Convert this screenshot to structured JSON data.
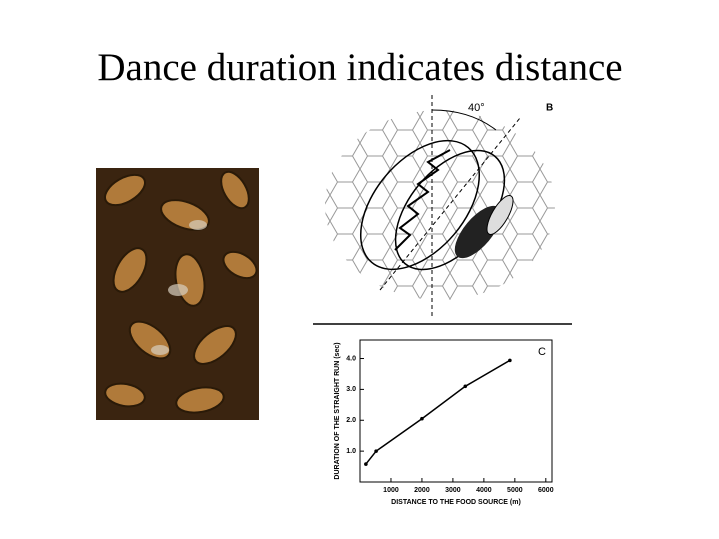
{
  "title": "Dance duration indicates distance",
  "diagram": {
    "panel_label": "B",
    "angle_label": "40°"
  },
  "chart_data": {
    "type": "line",
    "panel_label": "C",
    "xlabel": "DISTANCE TO THE FOOD SOURCE (m)",
    "ylabel": "DURATION OF THE STRAIGHT RUN (sec)",
    "x": [
      190,
      520,
      2000,
      3400,
      4840
    ],
    "values": [
      0.58,
      1.0,
      2.05,
      3.1,
      3.94
    ],
    "color": "#000000",
    "xlim": [
      0,
      6200
    ],
    "ylim": [
      0,
      4.6
    ],
    "xticks": [
      1000,
      2000,
      3000,
      4000,
      5000,
      6000
    ],
    "yticks": [
      {
        "value": 1,
        "label": "1.0"
      },
      {
        "value": 2,
        "label": "2.0"
      },
      {
        "value": 3,
        "label": "3.0"
      },
      {
        "value": 4,
        "label": "4.0"
      }
    ]
  }
}
